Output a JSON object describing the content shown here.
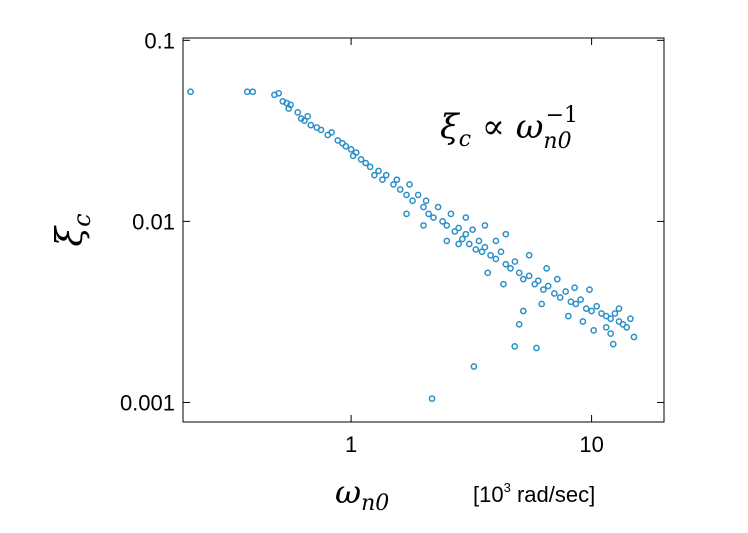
{
  "chart_data": {
    "type": "scatter",
    "ylabel": {
      "symbol": "ξ",
      "subscript": "c"
    },
    "xlabel": {
      "symbol": "ω",
      "subscript": "n0"
    },
    "x_unit": {
      "base": "[10",
      "superscript": "3",
      "rest": " rad/sec]"
    },
    "annotation": {
      "lhs": "ξ",
      "lhs_sub": "c",
      "op": " ∝ ",
      "rhs": "ω",
      "rhs_sub": "n0",
      "rhs_sup": "−1"
    },
    "color": "#2a8fc7",
    "xscale": "log",
    "yscale": "log",
    "xlim": [
      0.2,
      20
    ],
    "ylim": [
      0.00078,
      0.103
    ],
    "xticks": [
      1,
      10
    ],
    "yticks": [
      0.001,
      0.01,
      0.1
    ],
    "x": [
      0.215,
      0.37,
      0.39,
      0.48,
      0.5,
      0.52,
      0.54,
      0.56,
      0.55,
      0.6,
      0.62,
      0.64,
      0.66,
      0.68,
      0.72,
      0.75,
      0.8,
      0.83,
      0.88,
      0.92,
      0.95,
      1.0,
      1.02,
      1.05,
      1.1,
      1.15,
      1.2,
      1.25,
      1.3,
      1.35,
      1.4,
      1.5,
      1.55,
      1.6,
      1.7,
      1.75,
      1.8,
      1.9,
      2.0,
      2.05,
      2.1,
      2.2,
      2.3,
      2.4,
      2.5,
      2.6,
      2.7,
      2.8,
      2.9,
      3.0,
      3.1,
      3.2,
      3.3,
      3.4,
      3.5,
      3.6,
      3.8,
      4.0,
      4.2,
      4.4,
      4.6,
      4.8,
      5.0,
      5.2,
      5.5,
      5.8,
      6.0,
      6.3,
      6.6,
      7.0,
      7.4,
      7.8,
      8.2,
      8.6,
      9.0,
      9.5,
      10,
      10.5,
      11,
      11.5,
      12,
      12.5,
      13,
      13.5,
      14,
      14.5,
      15,
      2.17,
      3.24,
      4.79,
      5.9,
      5.0,
      2.8,
      12.3,
      3.0,
      3.6,
      4.4,
      4.0,
      5.5,
      6.5,
      7.2,
      8.5,
      9.2,
      10.2,
      11.5,
      13,
      6.2,
      5.2,
      4.3,
      3.7,
      2.5,
      2.0,
      1.7,
      8,
      9.8,
      12
    ],
    "values": [
      0.052,
      0.052,
      0.052,
      0.05,
      0.051,
      0.046,
      0.045,
      0.044,
      0.042,
      0.04,
      0.037,
      0.036,
      0.038,
      0.034,
      0.033,
      0.032,
      0.03,
      0.031,
      0.028,
      0.027,
      0.026,
      0.025,
      0.023,
      0.024,
      0.022,
      0.021,
      0.02,
      0.018,
      0.019,
      0.017,
      0.018,
      0.016,
      0.017,
      0.015,
      0.014,
      0.016,
      0.013,
      0.014,
      0.012,
      0.013,
      0.011,
      0.0105,
      0.012,
      0.01,
      0.0095,
      0.011,
      0.0088,
      0.0092,
      0.008,
      0.0085,
      0.0075,
      0.009,
      0.007,
      0.0078,
      0.0068,
      0.0072,
      0.0065,
      0.0062,
      0.0068,
      0.0058,
      0.0055,
      0.006,
      0.0052,
      0.0048,
      0.005,
      0.0045,
      0.0047,
      0.0042,
      0.0044,
      0.004,
      0.0038,
      0.0041,
      0.0036,
      0.0035,
      0.0037,
      0.0033,
      0.0032,
      0.0034,
      0.0031,
      0.003,
      0.0029,
      0.0031,
      0.0028,
      0.0027,
      0.0026,
      0.0029,
      0.0023,
      0.00105,
      0.00158,
      0.00204,
      0.002,
      0.0027,
      0.0075,
      0.0021,
      0.0105,
      0.0095,
      0.0085,
      0.0078,
      0.0065,
      0.0055,
      0.0048,
      0.0043,
      0.0028,
      0.0025,
      0.0026,
      0.0033,
      0.0035,
      0.0032,
      0.0045,
      0.0052,
      0.0078,
      0.0095,
      0.011,
      0.003,
      0.0042,
      0.0024
    ]
  }
}
